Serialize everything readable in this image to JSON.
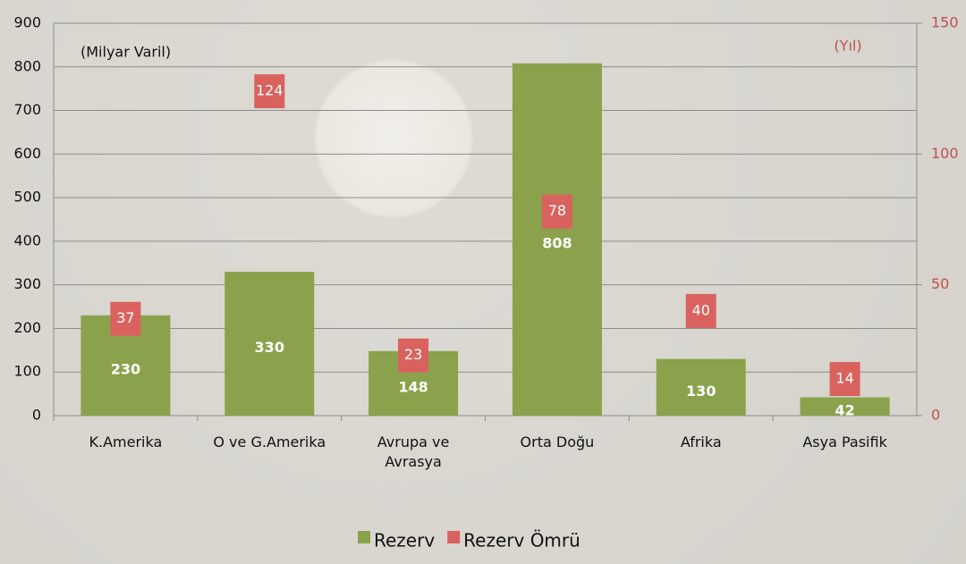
{
  "chart_data": {
    "type": "bar",
    "ylabel": "(Milyar Varil)",
    "y2label": "(Yıl)",
    "categories": [
      "K.Amerika",
      "O ve G.Amerika",
      "Avrupa ve\nAvrasya",
      "Orta Doğu",
      "Afrika",
      "Asya Pasifik"
    ],
    "series": [
      {
        "name": "Rezerv",
        "color": "#8aa24b",
        "values": [
          230,
          330,
          148,
          808,
          130,
          42
        ]
      },
      {
        "name": "Rezerv Ömrü",
        "color": "#d9625f",
        "axis": "y2",
        "marker": "square",
        "values": [
          37,
          124,
          23,
          78,
          40,
          14
        ]
      }
    ],
    "ylim": [
      0,
      900
    ],
    "yticks": [
      0,
      100,
      200,
      300,
      400,
      500,
      600,
      700,
      800,
      900
    ],
    "y2lim": [
      0,
      150
    ],
    "y2ticks": [
      0,
      50,
      100,
      150
    ],
    "grid": true,
    "legend": "bottom"
  }
}
